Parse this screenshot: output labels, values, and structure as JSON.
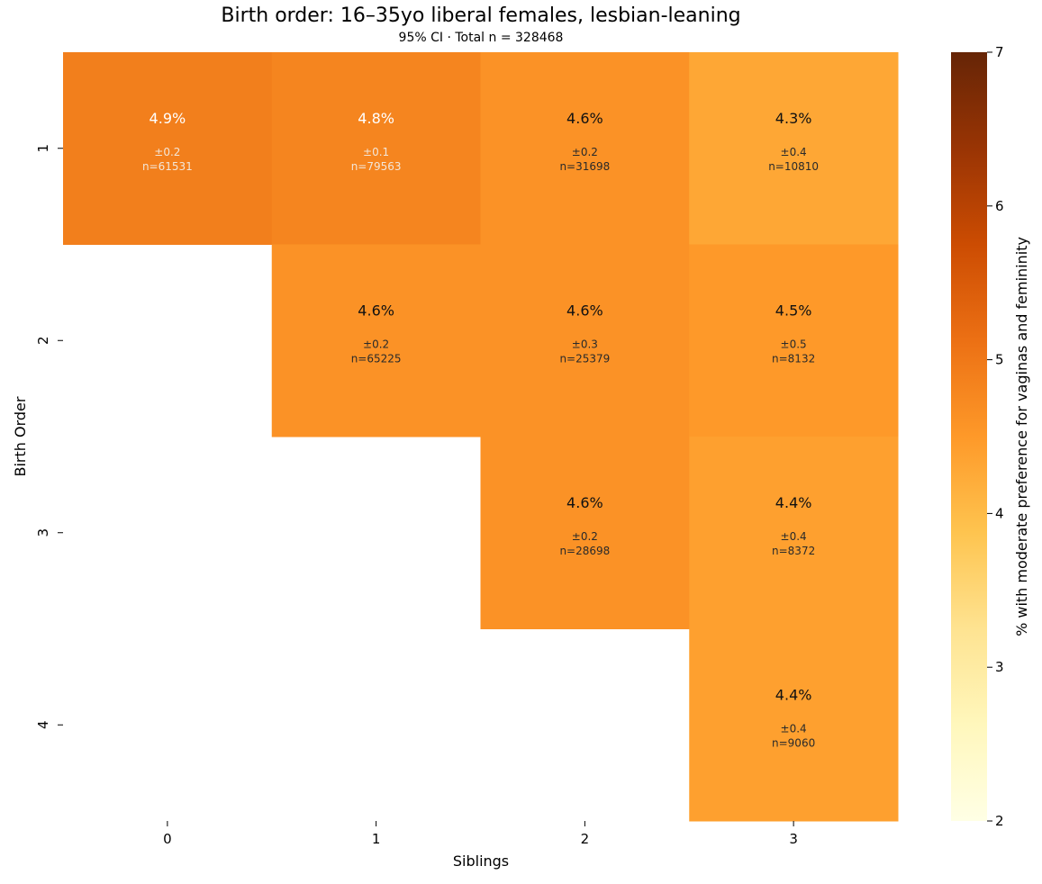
{
  "chart_data": {
    "type": "heatmap",
    "title": "Birth order: 16–35yo liberal females, lesbian-leaning",
    "subtitle": "95% CI · Total n = 328468",
    "xlabel": "Siblings",
    "ylabel": "Birth Order",
    "x_categories": [
      "0",
      "1",
      "2",
      "3"
    ],
    "y_categories": [
      "1",
      "2",
      "3",
      "4"
    ],
    "colorbar": {
      "label": "% with moderate preference for vaginas and femininity",
      "min": 2,
      "max": 7,
      "ticks": [
        "2",
        "3",
        "4",
        "5",
        "6",
        "7"
      ],
      "colormap": "YlOrBr"
    },
    "cells": [
      {
        "x": "0",
        "y": "1",
        "value": 4.9,
        "label": "4.9%",
        "ci": "±0.2",
        "n": "n=61531"
      },
      {
        "x": "1",
        "y": "1",
        "value": 4.8,
        "label": "4.8%",
        "ci": "±0.1",
        "n": "n=79563"
      },
      {
        "x": "2",
        "y": "1",
        "value": 4.6,
        "label": "4.6%",
        "ci": "±0.2",
        "n": "n=31698"
      },
      {
        "x": "3",
        "y": "1",
        "value": 4.3,
        "label": "4.3%",
        "ci": "±0.4",
        "n": "n=10810"
      },
      {
        "x": "1",
        "y": "2",
        "value": 4.6,
        "label": "4.6%",
        "ci": "±0.2",
        "n": "n=65225"
      },
      {
        "x": "2",
        "y": "2",
        "value": 4.6,
        "label": "4.6%",
        "ci": "±0.3",
        "n": "n=25379"
      },
      {
        "x": "3",
        "y": "2",
        "value": 4.5,
        "label": "4.5%",
        "ci": "±0.5",
        "n": "n=8132"
      },
      {
        "x": "2",
        "y": "3",
        "value": 4.6,
        "label": "4.6%",
        "ci": "±0.2",
        "n": "n=28698"
      },
      {
        "x": "3",
        "y": "3",
        "value": 4.4,
        "label": "4.4%",
        "ci": "±0.4",
        "n": "n=8372"
      },
      {
        "x": "3",
        "y": "4",
        "value": 4.4,
        "label": "4.4%",
        "ci": "±0.4",
        "n": "n=9060"
      }
    ]
  }
}
